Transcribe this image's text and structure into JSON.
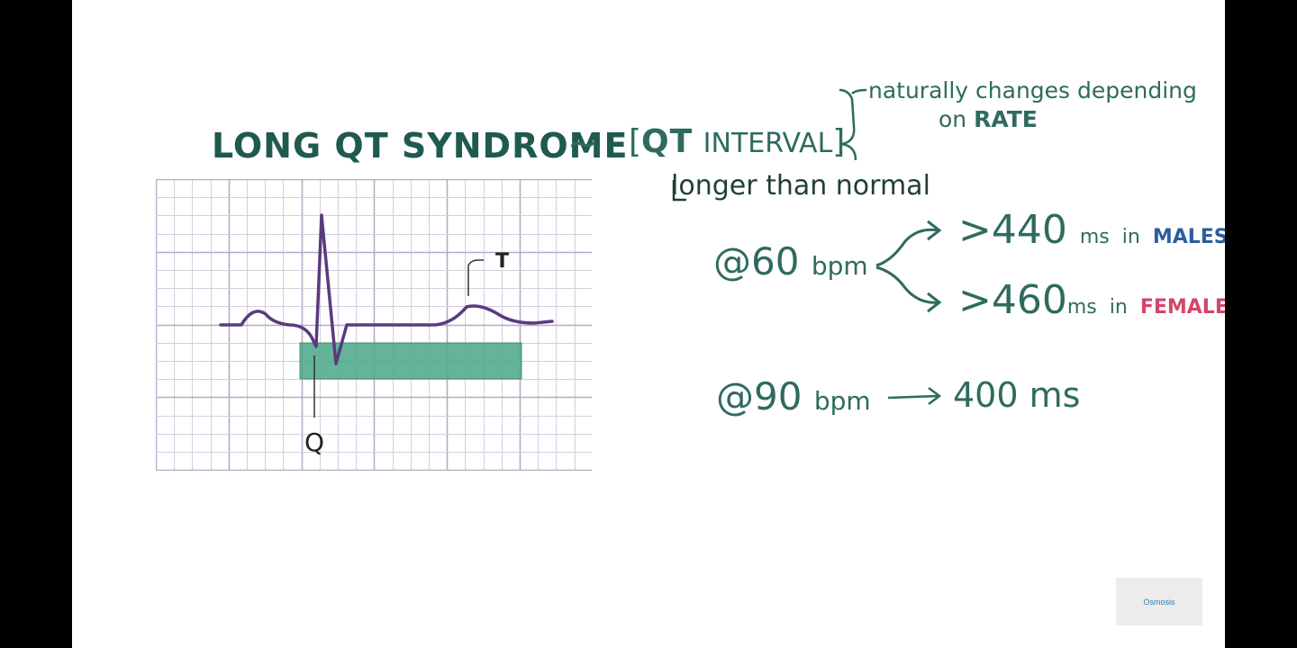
{
  "title": "LONG QT SYNDROME",
  "tilde": "~",
  "qt_interval": {
    "qt": "QT",
    "interval": "INTERVAL"
  },
  "longer_text": "longer than normal",
  "note": {
    "line1": "naturally changes depending",
    "line2_prefix": "on",
    "line2_rate": "RATE"
  },
  "rate60": {
    "at": "@60",
    "unit": "bpm"
  },
  "male_result": {
    "value": ">440",
    "unit": "ms",
    "in": "in",
    "sex": "MALES"
  },
  "female_result": {
    "value": ">460",
    "unit": "ms",
    "in": "in",
    "sex": "FEMALES"
  },
  "rate90": {
    "at": "@90",
    "unit": "bpm"
  },
  "result90": "400 ms",
  "ecg_labels": {
    "t": "T",
    "q": "Q"
  },
  "logo_text": "Osmosis",
  "colors": {
    "green": "#2e6b5e",
    "purple": "#5a3a7e",
    "qt_bar": "#4aa88a",
    "males": "#2c5d9e",
    "females": "#d4456a",
    "grid": "#cdbfd6"
  }
}
